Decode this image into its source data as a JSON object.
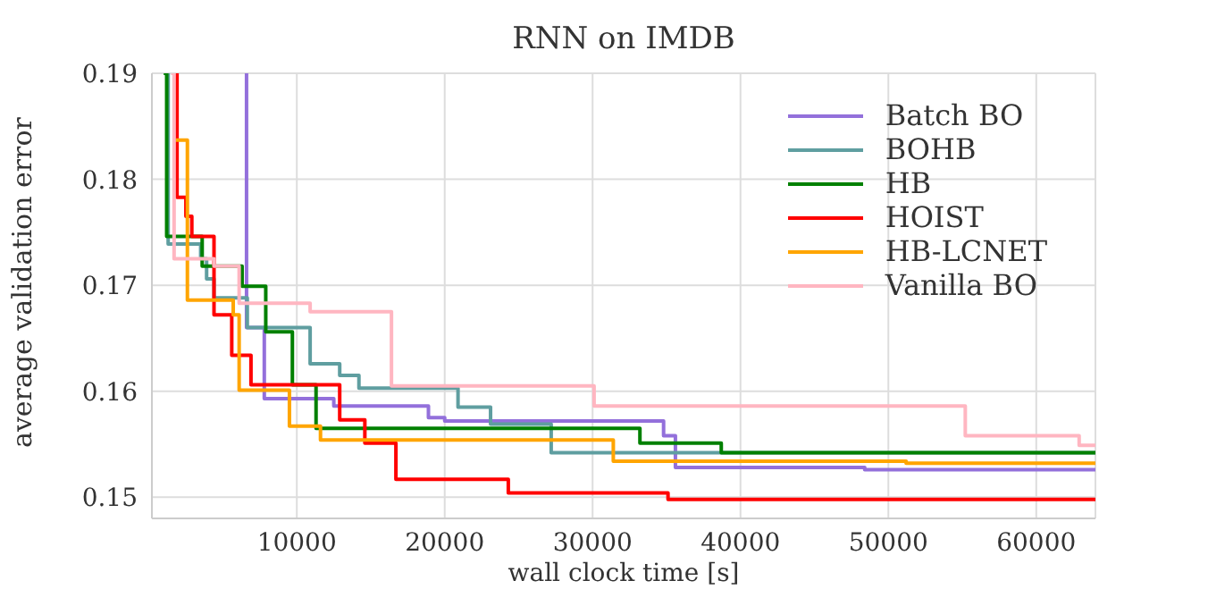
{
  "chart_data": {
    "type": "step",
    "title": "RNN on IMDB",
    "xlabel": "wall clock time [s]",
    "ylabel": "average validation error",
    "xlim": [
      200,
      64000
    ],
    "xticks": [
      10000,
      20000,
      30000,
      40000,
      50000,
      60000
    ],
    "ylim": [
      0.148,
      0.19
    ],
    "yticks": [
      0.15,
      0.16,
      0.17,
      0.18,
      0.19
    ],
    "grid": true,
    "legend": "top right",
    "series": [
      {
        "name": "Batch BO",
        "color": "#9370db",
        "x": [
          6500,
          6600,
          7800,
          12500,
          18900,
          20000,
          34800,
          35600,
          48400,
          64000
        ],
        "values": [
          0.19,
          0.166,
          0.1593,
          0.1586,
          0.1575,
          0.1572,
          0.1558,
          0.1528,
          0.1526,
          0.1526
        ]
      },
      {
        "name": "BOHB",
        "color": "#5f9ea0",
        "x": [
          1200,
          1300,
          3500,
          3900,
          4400,
          6650,
          10900,
          12900,
          14200,
          20900,
          23100,
          27200,
          64000
        ],
        "values": [
          0.19,
          0.1739,
          0.1725,
          0.1706,
          0.1688,
          0.166,
          0.1626,
          0.1615,
          0.1603,
          0.1585,
          0.1569,
          0.1542,
          0.1542
        ]
      },
      {
        "name": "HB",
        "color": "#008000",
        "x": [
          1000,
          1200,
          3600,
          6300,
          7900,
          9700,
          11300,
          33200,
          38700,
          64000
        ],
        "values": [
          0.19,
          0.1746,
          0.1718,
          0.1699,
          0.1656,
          0.1606,
          0.1565,
          0.1551,
          0.1542,
          0.1542
        ]
      },
      {
        "name": "HOIST",
        "color": "#ff0000",
        "x": [
          1800,
          1900,
          2500,
          2900,
          4400,
          5600,
          6900,
          12900,
          14600,
          16700,
          24300,
          35100,
          64000
        ],
        "values": [
          0.19,
          0.1783,
          0.1765,
          0.1746,
          0.1672,
          0.1634,
          0.1606,
          0.1573,
          0.1551,
          0.1517,
          0.1504,
          0.1498,
          0.1498
        ]
      },
      {
        "name": "HB-LCNET",
        "color": "#ffa500",
        "x": [
          1800,
          2600,
          5700,
          6100,
          9500,
          11600,
          31400,
          51200,
          64000
        ],
        "values": [
          0.1837,
          0.1686,
          0.1672,
          0.1601,
          0.1567,
          0.1554,
          0.1534,
          0.1532,
          0.1532
        ]
      },
      {
        "name": "Vanilla BO",
        "color": "#ffb6c1",
        "x": [
          1500,
          1700,
          4400,
          6100,
          10900,
          16400,
          30100,
          55200,
          62900,
          64000
        ],
        "values": [
          0.19,
          0.1725,
          0.1718,
          0.1683,
          0.1675,
          0.1605,
          0.1586,
          0.1558,
          0.1549,
          0.1549
        ]
      }
    ]
  }
}
